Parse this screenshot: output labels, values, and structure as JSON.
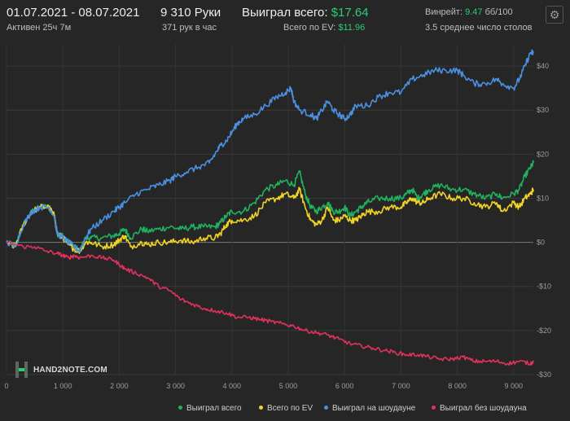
{
  "header": {
    "date_range": "01.07.2021 - 08.07.2021",
    "active": "Активен 25ч 7м",
    "hands_count": "9 310 Руки",
    "hands_per_hour": "371 рук в час",
    "won_total_label": "Выиграл всего:",
    "won_total_value": "$17.64",
    "ev_total_label": "Всего по EV:",
    "ev_total_value": "$11.96",
    "winrate_label": "Винрейт:",
    "winrate_value": "9.47",
    "winrate_unit": "бб/100",
    "avg_tables": "3.5 среднее число столов"
  },
  "icons": {
    "settings": "gear-icon"
  },
  "logo": {
    "text": "HAND2NOTE.COM"
  },
  "chart_data": {
    "type": "line",
    "xlim": [
      0,
      9350
    ],
    "ylim": [
      -30,
      45
    ],
    "x_ticks": [
      0,
      1000,
      2000,
      3000,
      4000,
      5000,
      6000,
      7000,
      8000,
      9000
    ],
    "x_tick_labels": [
      "0",
      "1 000",
      "2 000",
      "3 000",
      "4 000",
      "5 000",
      "6 000",
      "7 000",
      "8 000",
      "9 000"
    ],
    "y_ticks": [
      -30,
      -20,
      -10,
      0,
      10,
      20,
      30,
      40
    ],
    "y_tick_labels": [
      "-$30",
      "-$20",
      "-$10",
      "$0",
      "$10",
      "$20",
      "$30",
      "$40"
    ],
    "grid": true,
    "legend_position": "bottom-right",
    "series": [
      {
        "name": "Выиграл всего",
        "color": "#1fb35f",
        "points": [
          [
            0,
            0
          ],
          [
            150,
            -1
          ],
          [
            300,
            4
          ],
          [
            450,
            7
          ],
          [
            600,
            8
          ],
          [
            750,
            8
          ],
          [
            850,
            6
          ],
          [
            900,
            2
          ],
          [
            1000,
            1.5
          ],
          [
            1100,
            0
          ],
          [
            1200,
            -1
          ],
          [
            1300,
            -2
          ],
          [
            1400,
            1
          ],
          [
            1500,
            1
          ],
          [
            1700,
            1
          ],
          [
            1900,
            1.5
          ],
          [
            2000,
            2
          ],
          [
            2100,
            3
          ],
          [
            2200,
            1
          ],
          [
            2400,
            3
          ],
          [
            2500,
            2.5
          ],
          [
            2700,
            3
          ],
          [
            2900,
            3.5
          ],
          [
            3100,
            3
          ],
          [
            3300,
            3.5
          ],
          [
            3500,
            3.5
          ],
          [
            3700,
            3.5
          ],
          [
            3800,
            4.5
          ],
          [
            3900,
            6
          ],
          [
            4000,
            7
          ],
          [
            4200,
            7
          ],
          [
            4400,
            9
          ],
          [
            4600,
            12
          ],
          [
            4800,
            13
          ],
          [
            4950,
            14
          ],
          [
            5100,
            13
          ],
          [
            5200,
            16
          ],
          [
            5300,
            11
          ],
          [
            5400,
            8
          ],
          [
            5500,
            7
          ],
          [
            5600,
            8
          ],
          [
            5700,
            9
          ],
          [
            5800,
            7
          ],
          [
            5900,
            7
          ],
          [
            6000,
            8
          ],
          [
            6100,
            6
          ],
          [
            6200,
            7
          ],
          [
            6300,
            8
          ],
          [
            6400,
            9
          ],
          [
            6600,
            10
          ],
          [
            6800,
            10
          ],
          [
            7000,
            10
          ],
          [
            7100,
            11
          ],
          [
            7200,
            12
          ],
          [
            7300,
            10
          ],
          [
            7400,
            11
          ],
          [
            7500,
            12
          ],
          [
            7700,
            13
          ],
          [
            7900,
            12
          ],
          [
            8100,
            12
          ],
          [
            8300,
            11
          ],
          [
            8500,
            10
          ],
          [
            8700,
            11
          ],
          [
            8800,
            10
          ],
          [
            9000,
            11
          ],
          [
            9100,
            12
          ],
          [
            9200,
            15
          ],
          [
            9300,
            17
          ],
          [
            9350,
            18
          ]
        ]
      },
      {
        "name": "Всего по EV",
        "color": "#f0d323",
        "points": [
          [
            0,
            0
          ],
          [
            150,
            -1
          ],
          [
            300,
            4
          ],
          [
            450,
            7
          ],
          [
            600,
            8
          ],
          [
            750,
            8
          ],
          [
            850,
            6
          ],
          [
            900,
            2
          ],
          [
            1000,
            1
          ],
          [
            1100,
            -0.5
          ],
          [
            1200,
            -1.5
          ],
          [
            1300,
            -2
          ],
          [
            1400,
            0
          ],
          [
            1500,
            0
          ],
          [
            1700,
            -1
          ],
          [
            1900,
            -0.5
          ],
          [
            2000,
            0.5
          ],
          [
            2100,
            1.5
          ],
          [
            2200,
            -1
          ],
          [
            2400,
            0
          ],
          [
            2500,
            -0.5
          ],
          [
            2700,
            0
          ],
          [
            2900,
            0
          ],
          [
            3100,
            0.5
          ],
          [
            3300,
            0
          ],
          [
            3500,
            1
          ],
          [
            3700,
            1
          ],
          [
            3800,
            2
          ],
          [
            3900,
            4
          ],
          [
            4000,
            5
          ],
          [
            4200,
            5
          ],
          [
            4400,
            6
          ],
          [
            4600,
            9
          ],
          [
            4800,
            10
          ],
          [
            4950,
            11
          ],
          [
            5100,
            10
          ],
          [
            5200,
            12
          ],
          [
            5300,
            8
          ],
          [
            5400,
            5
          ],
          [
            5500,
            4
          ],
          [
            5600,
            5
          ],
          [
            5700,
            8
          ],
          [
            5800,
            5
          ],
          [
            5900,
            5
          ],
          [
            6000,
            6
          ],
          [
            6100,
            5
          ],
          [
            6200,
            5
          ],
          [
            6300,
            6
          ],
          [
            6400,
            7
          ],
          [
            6600,
            7
          ],
          [
            6800,
            8
          ],
          [
            7000,
            8
          ],
          [
            7100,
            9
          ],
          [
            7200,
            10
          ],
          [
            7300,
            9
          ],
          [
            7400,
            9
          ],
          [
            7500,
            10
          ],
          [
            7700,
            11
          ],
          [
            7900,
            10
          ],
          [
            8100,
            10
          ],
          [
            8300,
            9
          ],
          [
            8500,
            8
          ],
          [
            8700,
            9
          ],
          [
            8800,
            7
          ],
          [
            9000,
            9
          ],
          [
            9100,
            8
          ],
          [
            9200,
            10
          ],
          [
            9300,
            11
          ],
          [
            9350,
            12
          ]
        ]
      },
      {
        "name": "Выиграл на шоудауне",
        "color": "#4a90e2",
        "points": [
          [
            0,
            0
          ],
          [
            150,
            -1
          ],
          [
            300,
            4
          ],
          [
            450,
            7
          ],
          [
            600,
            8
          ],
          [
            750,
            8
          ],
          [
            850,
            6
          ],
          [
            900,
            2
          ],
          [
            1000,
            1
          ],
          [
            1100,
            0
          ],
          [
            1200,
            -1
          ],
          [
            1300,
            -2
          ],
          [
            1400,
            1
          ],
          [
            1500,
            3
          ],
          [
            1700,
            5
          ],
          [
            1900,
            7
          ],
          [
            2000,
            8
          ],
          [
            2100,
            9
          ],
          [
            2300,
            11
          ],
          [
            2500,
            12
          ],
          [
            2700,
            13
          ],
          [
            2900,
            14
          ],
          [
            3000,
            15
          ],
          [
            3200,
            16
          ],
          [
            3400,
            17
          ],
          [
            3600,
            18
          ],
          [
            3700,
            20
          ],
          [
            3800,
            22
          ],
          [
            3900,
            23
          ],
          [
            4000,
            25
          ],
          [
            4100,
            27
          ],
          [
            4200,
            28
          ],
          [
            4400,
            29
          ],
          [
            4600,
            31
          ],
          [
            4800,
            33
          ],
          [
            4950,
            34
          ],
          [
            5050,
            35
          ],
          [
            5100,
            32
          ],
          [
            5200,
            30
          ],
          [
            5400,
            29
          ],
          [
            5500,
            28
          ],
          [
            5600,
            30
          ],
          [
            5700,
            32
          ],
          [
            5800,
            30
          ],
          [
            5900,
            29
          ],
          [
            6000,
            28
          ],
          [
            6100,
            29
          ],
          [
            6200,
            31
          ],
          [
            6400,
            31
          ],
          [
            6600,
            33
          ],
          [
            6800,
            34
          ],
          [
            7000,
            34
          ],
          [
            7200,
            37
          ],
          [
            7400,
            38
          ],
          [
            7600,
            39
          ],
          [
            7800,
            39
          ],
          [
            8000,
            39
          ],
          [
            8100,
            38
          ],
          [
            8300,
            36
          ],
          [
            8500,
            36
          ],
          [
            8700,
            37
          ],
          [
            8800,
            36
          ],
          [
            9000,
            35
          ],
          [
            9100,
            37
          ],
          [
            9200,
            40
          ],
          [
            9300,
            43
          ],
          [
            9350,
            43
          ]
        ]
      },
      {
        "name": "Выиграл без шоудауна",
        "color": "#e3305f",
        "points": [
          [
            0,
            0
          ],
          [
            300,
            -1
          ],
          [
            500,
            -1
          ],
          [
            700,
            -2
          ],
          [
            900,
            -2.5
          ],
          [
            1000,
            -3
          ],
          [
            1100,
            -3.5
          ],
          [
            1200,
            -3
          ],
          [
            1300,
            -3.5
          ],
          [
            1500,
            -3
          ],
          [
            1700,
            -3.5
          ],
          [
            1900,
            -4
          ],
          [
            2000,
            -5
          ],
          [
            2100,
            -6
          ],
          [
            2300,
            -7
          ],
          [
            2500,
            -8
          ],
          [
            2700,
            -10
          ],
          [
            2900,
            -11
          ],
          [
            3100,
            -13
          ],
          [
            3300,
            -14
          ],
          [
            3500,
            -15
          ],
          [
            3700,
            -15.5
          ],
          [
            3900,
            -16
          ],
          [
            4100,
            -17
          ],
          [
            4300,
            -17
          ],
          [
            4500,
            -17.5
          ],
          [
            4700,
            -18
          ],
          [
            4900,
            -18.5
          ],
          [
            5100,
            -19
          ],
          [
            5300,
            -20
          ],
          [
            5500,
            -20.5
          ],
          [
            5700,
            -21
          ],
          [
            5900,
            -22
          ],
          [
            6100,
            -23
          ],
          [
            6300,
            -23.5
          ],
          [
            6500,
            -24
          ],
          [
            6700,
            -24.5
          ],
          [
            6900,
            -25
          ],
          [
            7100,
            -25.5
          ],
          [
            7300,
            -25.5
          ],
          [
            7500,
            -26
          ],
          [
            7700,
            -26.5
          ],
          [
            7900,
            -26.5
          ],
          [
            8100,
            -26
          ],
          [
            8300,
            -27
          ],
          [
            8500,
            -27
          ],
          [
            8700,
            -27
          ],
          [
            8900,
            -27.5
          ],
          [
            9100,
            -27
          ],
          [
            9300,
            -27.5
          ],
          [
            9350,
            -27
          ]
        ]
      }
    ]
  }
}
